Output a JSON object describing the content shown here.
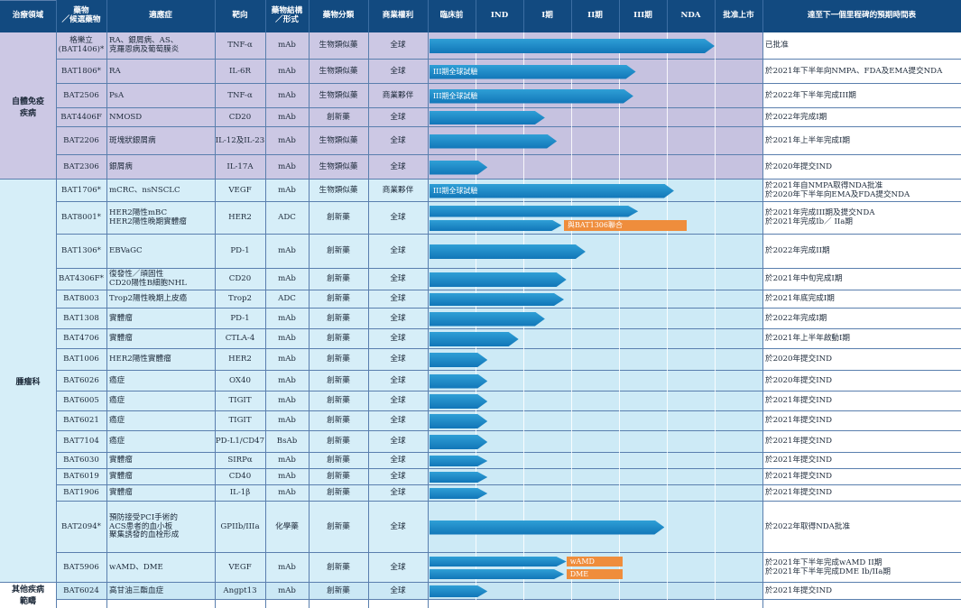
{
  "colors": {
    "header": "#124a80",
    "autoimmune_bg": "#ccc8e4",
    "oncology_bg": "#d6eef8",
    "other_bg": "#cbe8f5",
    "arrow": "#1b84c4",
    "label": "#ef8d3c"
  },
  "headers": {
    "area": "治療領域",
    "drug": "藥物\n／候選藥物",
    "indication": "適應症",
    "target": "靶向",
    "form": "藥物結構\n／形式",
    "category": "藥物分類",
    "rights": "商業權利",
    "preclinical": "臨床前",
    "ind": "IND",
    "p1": "I期",
    "p2": "II期",
    "p3": "III期",
    "nda": "NDA",
    "approved": "批准上市",
    "milestone": "達至下一個里程碑的預期時間表"
  },
  "areas": [
    {
      "name": "自體免疫\n疾病",
      "first": 0,
      "last": 5,
      "color": "autoimmune"
    },
    {
      "name": "腫瘤科",
      "first": 6,
      "last": 22,
      "color": "oncology"
    },
    {
      "name": "其他疾病\n範疇",
      "first": 23,
      "last": 25,
      "color": "other"
    }
  ],
  "chart_data": {
    "type": "table",
    "stages": [
      "臨床前",
      "IND",
      "I期",
      "II期",
      "III期",
      "NDA",
      "批准上市"
    ],
    "rows": [
      {
        "drug": "格樂立\n(BAT1406)*",
        "indication": "RA、銀屑病、AS、\n克羅恩病及葡萄膜炎",
        "target": "TNF-α",
        "form": "mAb",
        "category": "生物類似藥",
        "rights": "全球",
        "progress": 6.0,
        "bars": [],
        "labels": [],
        "milestone": "已批准"
      },
      {
        "drug": "BAT1806*",
        "indication": "RA",
        "target": "IL-6R",
        "form": "mAb",
        "category": "生物類似藥",
        "rights": "全球",
        "progress": 4.35,
        "bars": [],
        "labels": [
          "III期全球試驗"
        ],
        "milestone": "於2021年下半年向NMPA、FDA及EMA提交NDA"
      },
      {
        "drug": "BAT2506",
        "indication": "PsA",
        "target": "TNF-α",
        "form": "mAb",
        "category": "生物類似藥",
        "rights": "商業夥伴",
        "progress": 4.3,
        "bars": [],
        "labels": [
          "III期全球試驗"
        ],
        "milestone": "於2022年下半年完成III期"
      },
      {
        "drug": "BAT4406F",
        "indication": "NMOSD",
        "target": "CD20",
        "form": "mAb",
        "category": "創新藥",
        "rights": "全球",
        "progress": 2.45,
        "bars": [],
        "labels": [],
        "milestone": "於2022年完成I期"
      },
      {
        "drug": "BAT2206",
        "indication": "斑塊狀銀屑病",
        "target": "IL-12及IL-23",
        "form": "mAb",
        "category": "生物類似藥",
        "rights": "全球",
        "progress": 2.7,
        "bars": [],
        "labels": [],
        "milestone": "於2021年上半年完成I期"
      },
      {
        "drug": "BAT2306",
        "indication": "銀屑病",
        "target": "IL-17A",
        "form": "mAb",
        "category": "生物類似藥",
        "rights": "全球",
        "progress": 1.25,
        "bars": [],
        "labels": [],
        "milestone": "於2020年提交IND"
      },
      {
        "drug": "BAT1706*",
        "indication": "mCRC、nsNSCLC",
        "target": "VEGF",
        "form": "mAb",
        "category": "生物類似藥",
        "rights": "商業夥伴",
        "progress": 5.15,
        "bars": [],
        "labels": [
          "III期全球試驗"
        ],
        "milestone": "於2021年自NMPA取得NDA批准\n於2020年下半年向EMA及FDA提交NDA"
      },
      {
        "drug": "BAT8001*",
        "indication": "HER2陽性mBC\nHER2陽性晚期實體瘤",
        "target": "HER2",
        "form": "ADC",
        "category": "創新藥",
        "rights": "全球",
        "progress": 0,
        "bars": [
          4.4,
          2.8
        ],
        "labels": [
          "與BAT1306聯合"
        ],
        "milestone": "於2021年完成III期及提交NDA\n於2021年完成Ib／ IIa期"
      },
      {
        "drug": "BAT1306*",
        "indication": "EBVaGC",
        "target": "PD-1",
        "form": "mAb",
        "category": "創新藥",
        "rights": "全球",
        "progress": 3.3,
        "bars": [],
        "labels": [],
        "milestone": "於2022年完成II期"
      },
      {
        "drug": "BAT4306F*",
        "indication": "復發性／頑固性\nCD20陽性B細胞NHL",
        "target": "CD20",
        "form": "mAb",
        "category": "創新藥",
        "rights": "全球",
        "progress": 2.9,
        "bars": [],
        "labels": [],
        "milestone": "於2021年中旬完成I期"
      },
      {
        "drug": "BAT8003",
        "indication": "Trop2陽性晚期上皮癌",
        "target": "Trop2",
        "form": "ADC",
        "category": "創新藥",
        "rights": "全球",
        "progress": 2.85,
        "bars": [],
        "labels": [],
        "milestone": "於2021年底完成I期"
      },
      {
        "drug": "BAT1308",
        "indication": "實體瘤",
        "target": "PD-1",
        "form": "mAb",
        "category": "創新藥",
        "rights": "全球",
        "progress": 2.45,
        "bars": [],
        "labels": [],
        "milestone": "於2022年完成I期"
      },
      {
        "drug": "BAT4706",
        "indication": "實體瘤",
        "target": "CTLA-4",
        "form": "mAb",
        "category": "創新藥",
        "rights": "全球",
        "progress": 1.9,
        "bars": [],
        "labels": [],
        "milestone": "於2021年上半年啟動I期"
      },
      {
        "drug": "BAT1006",
        "indication": "HER2陽性實體瘤",
        "target": "HER2",
        "form": "mAb",
        "category": "創新藥",
        "rights": "全球",
        "progress": 1.25,
        "bars": [],
        "labels": [],
        "milestone": "於2020年提交IND"
      },
      {
        "drug": "BAT6026",
        "indication": "癌症",
        "target": "OX40",
        "form": "mAb",
        "category": "創新藥",
        "rights": "全球",
        "progress": 1.25,
        "bars": [],
        "labels": [],
        "milestone": "於2020年提交IND"
      },
      {
        "drug": "BAT6005",
        "indication": "癌症",
        "target": "TIGIT",
        "form": "mAb",
        "category": "創新藥",
        "rights": "全球",
        "progress": 1.25,
        "bars": [],
        "labels": [],
        "milestone": "於2021年提交IND"
      },
      {
        "drug": "BAT6021",
        "indication": "癌症",
        "target": "TIGIT",
        "form": "mAb",
        "category": "創新藥",
        "rights": "全球",
        "progress": 1.25,
        "bars": [],
        "labels": [],
        "milestone": "於2021年提交IND"
      },
      {
        "drug": "BAT7104",
        "indication": "癌症",
        "target": "PD-L1/CD47",
        "form": "BsAb",
        "category": "創新藥",
        "rights": "全球",
        "progress": 1.25,
        "bars": [],
        "labels": [],
        "milestone": "於2021年提交IND"
      },
      {
        "drug": "BAT6030",
        "indication": "實體瘤",
        "target": "SIRPα",
        "form": "mAb",
        "category": "創新藥",
        "rights": "全球",
        "progress": 1.25,
        "bars": [],
        "labels": [],
        "milestone": "於2021年提交IND"
      },
      {
        "drug": "BAT6019",
        "indication": "實體瘤",
        "target": "CD40",
        "form": "mAb",
        "category": "創新藥",
        "rights": "全球",
        "progress": 1.25,
        "bars": [],
        "labels": [],
        "milestone": "於2021年提交IND"
      },
      {
        "drug": "BAT1906",
        "indication": "實體瘤",
        "target": "IL-1β",
        "form": "mAb",
        "category": "創新藥",
        "rights": "全球",
        "progress": 1.25,
        "bars": [],
        "labels": [],
        "milestone": "於2021年提交IND"
      },
      {
        "drug": "BAT2094*",
        "indication": "預防接受PCI手術的\nACS患者的血小板\n聚集誘發的血栓形成",
        "target": "GPIIb/IIIa",
        "form": "化學藥",
        "category": "創新藥",
        "rights": "全球",
        "progress": 4.95,
        "bars": [],
        "labels": [],
        "milestone": "於2022年取得NDA批准"
      },
      {
        "drug": "BAT5906",
        "indication": "wAMD、DME",
        "target": "VEGF",
        "form": "mAb",
        "category": "創新藥",
        "rights": "全球",
        "progress": 0,
        "bars": [
          2.9,
          2.85
        ],
        "labels": [
          "wAMD",
          "DME"
        ],
        "milestone": "於2021年下半年完成wAMD II期\n於2021年下半年完成DME Ib/IIa期"
      },
      {
        "drug": "BAT6024",
        "indication": "高甘油三酯血症",
        "target": "Angpt13",
        "form": "mAb",
        "category": "創新藥",
        "rights": "全球",
        "progress": 1.25,
        "bars": [],
        "labels": [],
        "milestone": "於2021年提交IND"
      }
    ]
  }
}
